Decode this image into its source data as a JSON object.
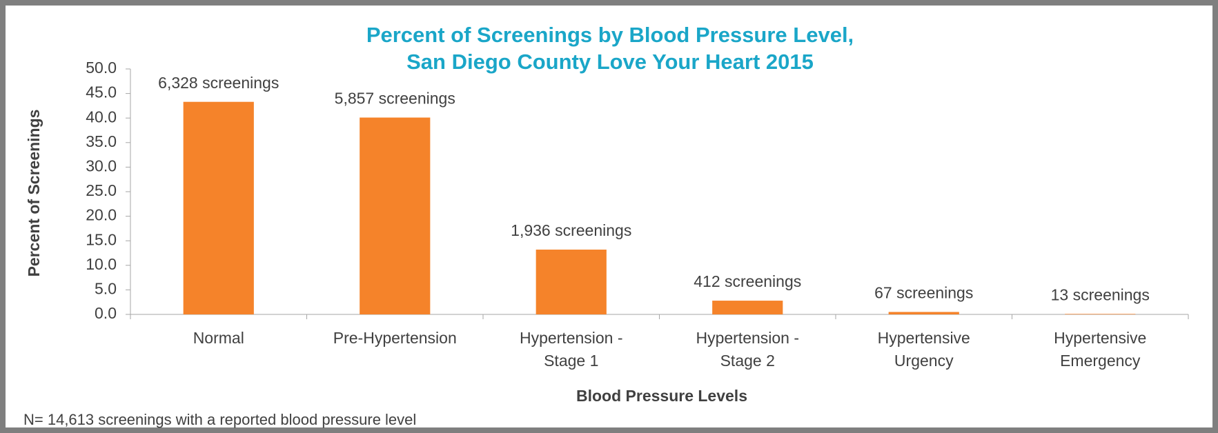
{
  "chart_data": {
    "type": "bar",
    "title": "Percent of Screenings by Blood Pressure Level,",
    "subtitle": "San Diego County Love Your Heart 2015",
    "x_label": "Blood Pressure Levels",
    "y_label": "Percent of Screenings",
    "footnote": "N= 14,613 screenings with a reported blood pressure level",
    "categories": [
      "Normal",
      "Pre-Hypertension",
      "Hypertension - Stage 1",
      "Hypertension - Stage 2",
      "Hypertensive Urgency",
      "Hypertensive Emergency"
    ],
    "values": [
      43.3,
      40.1,
      13.2,
      2.8,
      0.5,
      0.1
    ],
    "annotations": [
      "6,328 screenings",
      "5,857 screenings",
      "1,936 screenings",
      "412 screenings",
      "67 screenings",
      "13 screenings"
    ],
    "color": "#f5832a",
    "ylim": [
      0,
      50
    ],
    "yticks": [
      {
        "value": 0,
        "label": "0.0"
      },
      {
        "value": 5,
        "label": "5.0"
      },
      {
        "value": 10,
        "label": "10.0"
      },
      {
        "value": 15,
        "label": "15.0"
      },
      {
        "value": 20,
        "label": "20.0"
      },
      {
        "value": 25,
        "label": "25.0"
      },
      {
        "value": 30,
        "label": "30.0"
      },
      {
        "value": 35,
        "label": "35.0"
      },
      {
        "value": 40,
        "label": "40.0"
      },
      {
        "value": 45,
        "label": "45.0"
      },
      {
        "value": 50,
        "label": "50.0"
      }
    ],
    "grid": false
  }
}
